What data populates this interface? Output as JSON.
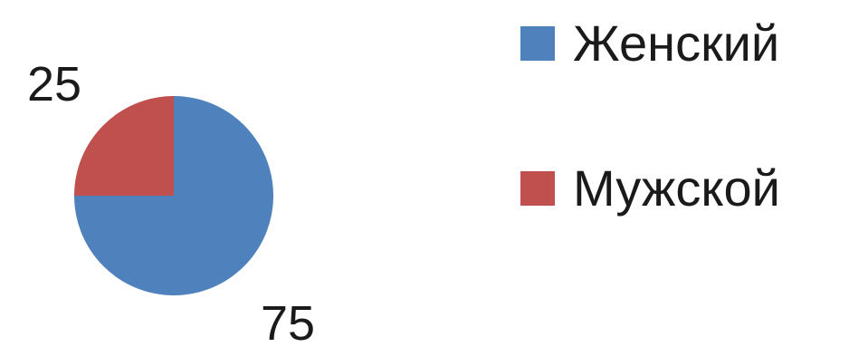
{
  "chart_data": {
    "type": "pie",
    "title": "",
    "slices": [
      {
        "name": "Женский",
        "value": 75,
        "label": "75",
        "color": "#4f81bd"
      },
      {
        "name": "Мужской",
        "value": 25,
        "label": "25",
        "color": "#c0504d"
      }
    ],
    "legend": {
      "position": "right",
      "items": [
        {
          "label": "Женский",
          "color": "#4f81bd"
        },
        {
          "label": "Мужской",
          "color": "#c0504d"
        }
      ]
    }
  }
}
